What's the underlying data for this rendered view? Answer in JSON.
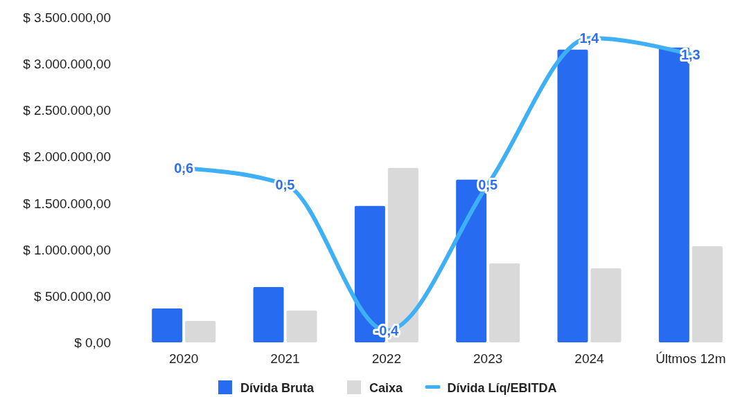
{
  "chart_data": {
    "type": "bar",
    "categories": [
      "2020",
      "2021",
      "2022",
      "2023",
      "2024",
      "Últmos 12m"
    ],
    "series": [
      {
        "name": "Dívida Bruta",
        "color": "#266bf0",
        "values": [
          365000,
          596000,
          1468000,
          1751000,
          3152000,
          3175000
        ]
      },
      {
        "name": "Caixa",
        "color": "#d9d9d9",
        "values": [
          230000,
          343000,
          1878000,
          850000,
          797000,
          1036000
        ]
      },
      {
        "name": "Dívida Líq/EBITDA",
        "type": "line",
        "axis": "y2",
        "color": "#3fb0f5",
        "values": [
          0.6,
          0.5,
          -0.4,
          0.5,
          1.4,
          1.3
        ],
        "value_labels": [
          "0,6",
          "0,5",
          "-0,4",
          "0,5",
          "1,4",
          "1,3"
        ]
      }
    ],
    "ylim": [
      0,
      3500000
    ],
    "yticks": [
      {
        "value": 0,
        "label": "$ 0,00"
      },
      {
        "value": 500000,
        "label": "$ 500.000,00"
      },
      {
        "value": 1000000,
        "label": "$ 1.000.000,00"
      },
      {
        "value": 1500000,
        "label": "$ 1.500.000,00"
      },
      {
        "value": 2000000,
        "label": "$ 2.000.000,00"
      },
      {
        "value": 2500000,
        "label": "$ 2.500.000,00"
      },
      {
        "value": 3000000,
        "label": "$ 3.000.000,00"
      },
      {
        "value": 3500000,
        "label": "$ 3.500.000,00"
      }
    ],
    "tick_labels": "xy",
    "grid": false,
    "legend": "bottom",
    "marker": "none",
    "line_style": "solid"
  }
}
